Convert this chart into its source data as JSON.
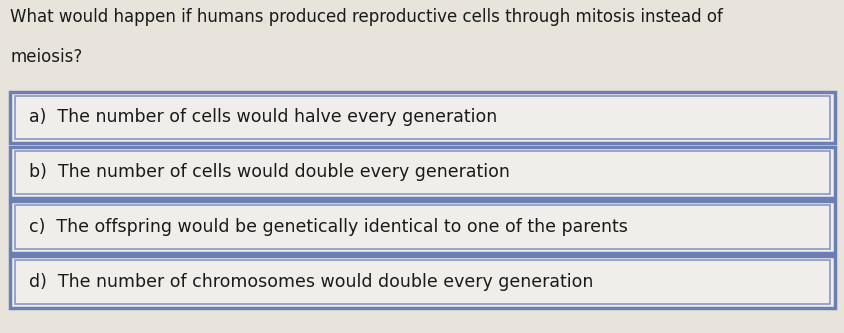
{
  "question_line1": "What would happen if humans produced reproductive cells through mitosis instead of",
  "question_line2": "meiosis?",
  "options": [
    "a)  The number of cells would halve every generation",
    "b)  The number of cells would double every generation",
    "c)  The offspring would be genetically identical to one of the parents",
    "d)  The number of chromosomes would double every generation"
  ],
  "bg_color": "#e8e4dc",
  "box_bg_color": "#f0eeea",
  "box_border_outer": "#6b7fb5",
  "box_border_inner": "#8898c0",
  "question_fontsize": 12.0,
  "option_fontsize": 12.5,
  "text_color": "#1a1a1a",
  "question_fontstyle": "normal",
  "option_fontstyle": "normal"
}
